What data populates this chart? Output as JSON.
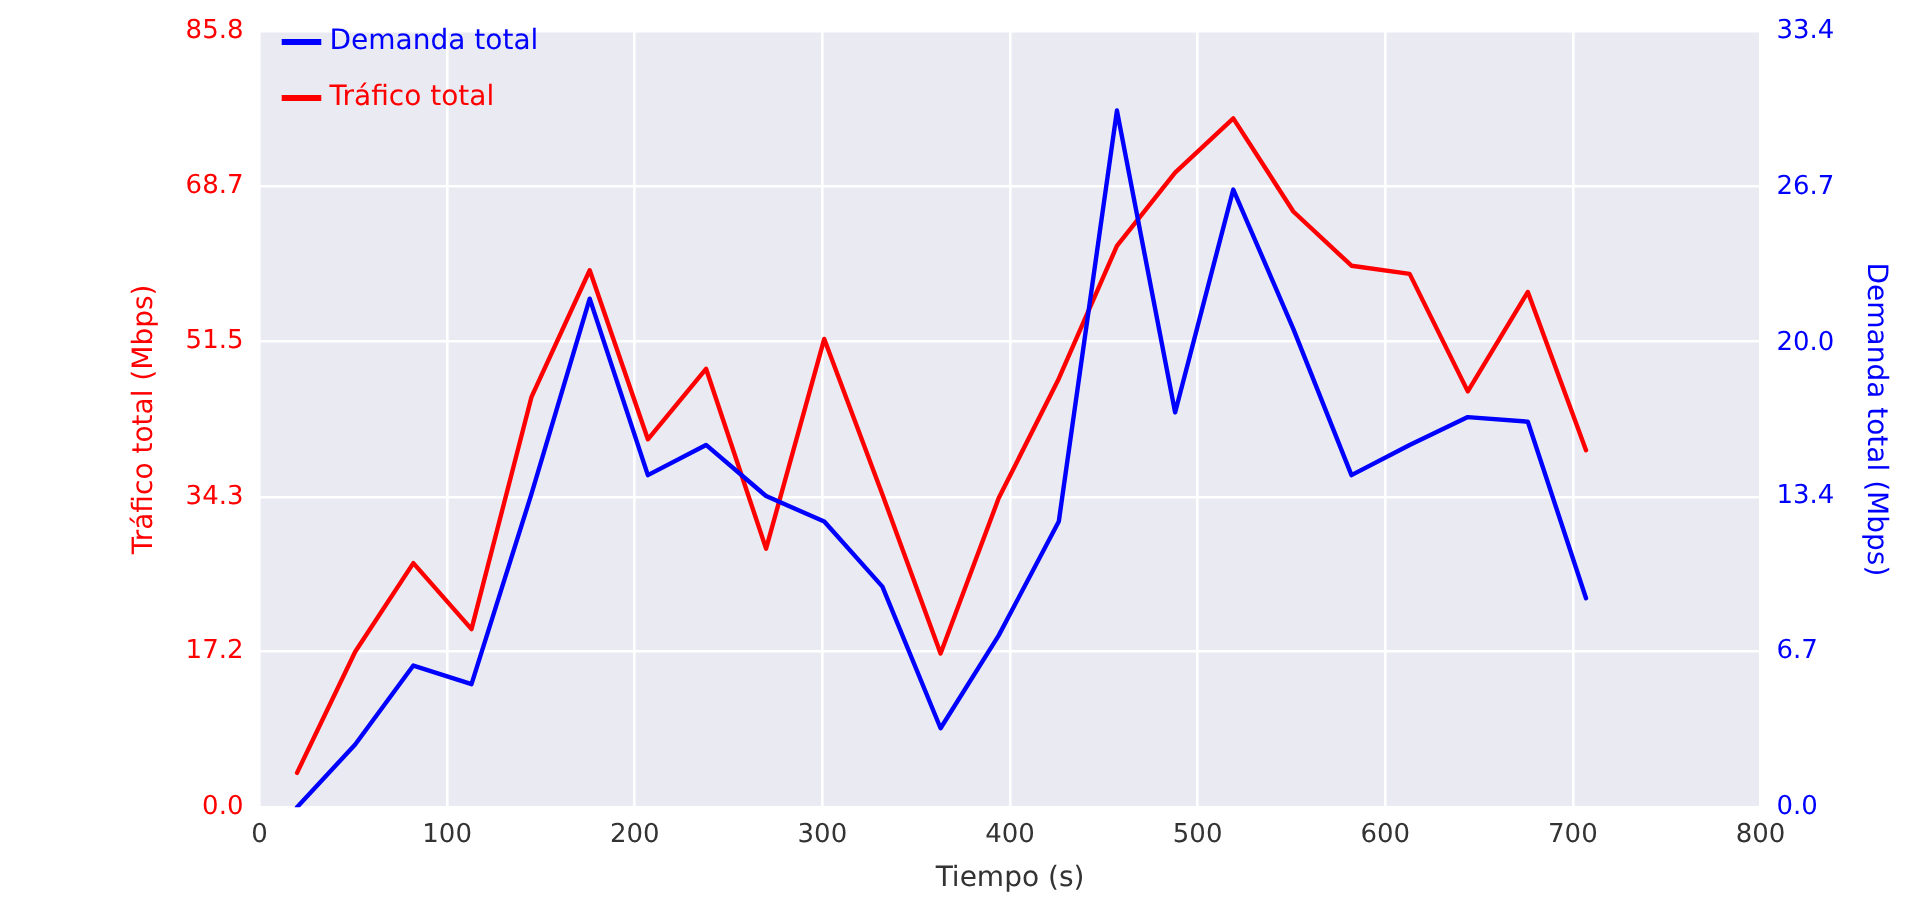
{
  "chart_data": {
    "type": "line",
    "xlabel": "Tiempo (s)",
    "ylabel": "Tráfico total (Mbps)",
    "y2label": "Demanda total (Mbps)",
    "x": [
      20,
      51,
      82,
      113,
      145,
      176,
      207,
      238,
      270,
      301,
      332,
      363,
      394,
      426,
      457,
      488,
      519,
      551,
      582,
      613,
      644,
      676,
      707
    ],
    "series": [
      {
        "name": "Demanda total",
        "color": "#0000ff",
        "axis": "y2",
        "values": [
          0,
          2.7,
          6.1,
          5.3,
          13.5,
          21.9,
          14.3,
          15.6,
          13.4,
          12.3,
          9.5,
          3.4,
          7.4,
          12.3,
          30.0,
          17.0,
          26.6,
          20.6,
          14.3,
          15.6,
          16.8,
          16.6,
          9.0
        ]
      },
      {
        "name": "Tráfico total",
        "color": "#ff0000",
        "axis": "y",
        "values": [
          3.8,
          17.2,
          27.0,
          19.7,
          45.4,
          59.4,
          40.7,
          48.5,
          28.6,
          51.8,
          34.6,
          17.0,
          34.2,
          47.4,
          62.1,
          70.2,
          76.2,
          65.9,
          59.9,
          59.0,
          46.0,
          57.0,
          39.5
        ]
      }
    ],
    "xlim": [
      0,
      800
    ],
    "xticks": [
      0,
      100,
      200,
      300,
      400,
      500,
      600,
      700,
      800
    ],
    "ylim": [
      0,
      85.8
    ],
    "yticks": [
      {
        "value": 0,
        "label": "0.0"
      },
      17.2,
      34.3,
      51.5,
      68.7,
      85.8
    ],
    "y2lim": [
      0,
      33.4
    ],
    "y2ticks": [
      {
        "value": 0,
        "label": "0.0"
      },
      6.7,
      13.4,
      {
        "value": 20,
        "label": "20.0"
      },
      26.7,
      33.4
    ],
    "grid": true,
    "legend": "top left",
    "marker": "none",
    "line_style": "solid"
  }
}
